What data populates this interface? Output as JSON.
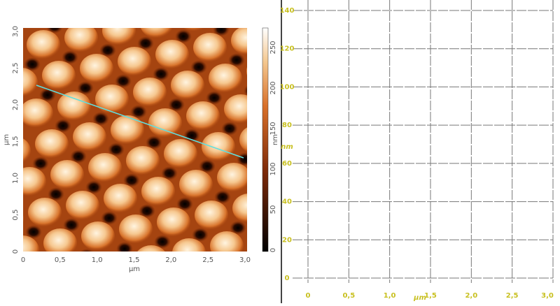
{
  "afm_image": {
    "x_axis": {
      "label": "µm",
      "ticks": [
        "0",
        "0,5",
        "1,0",
        "1,5",
        "2,0",
        "2,5",
        "3,0"
      ]
    },
    "y_axis": {
      "label": "µm",
      "ticks": [
        "0",
        "0,5",
        "1,0",
        "1,5",
        "2,0",
        "2,5",
        "3,0"
      ]
    },
    "colorbar": {
      "label": "nm",
      "ticks": [
        "0",
        "50",
        "100",
        "150",
        "200",
        "250"
      ]
    }
  },
  "profile": {
    "y_axis": {
      "label": "nm",
      "ticks": [
        "0",
        "20",
        "40",
        "60",
        "80",
        "100",
        "120",
        "140"
      ]
    },
    "x_axis": {
      "label": "µm",
      "ticks": [
        "0",
        "0,5",
        "1,0",
        "1,5",
        "2,0",
        "2,5",
        "3,0"
      ]
    }
  }
}
